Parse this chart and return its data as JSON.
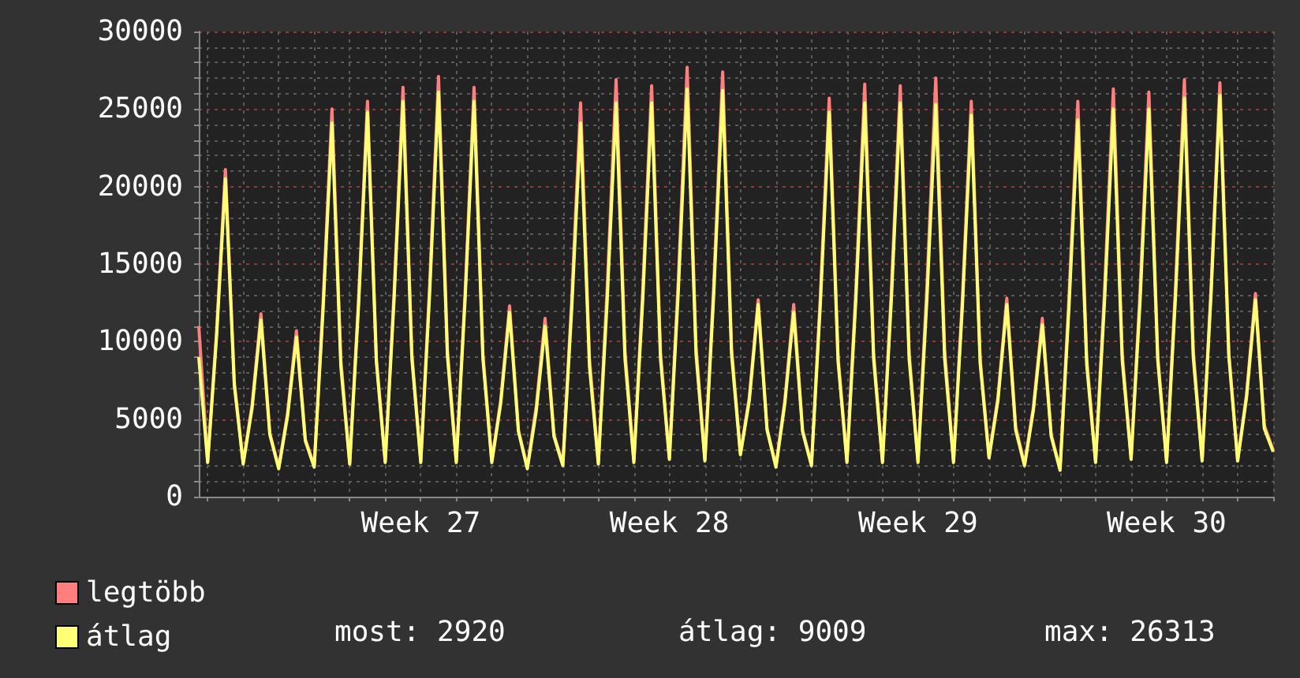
{
  "chart_data": {
    "type": "line",
    "legend": "bottom left",
    "grid": true,
    "marker": "none",
    "line_style": "solid",
    "annotations": [
      "most: 2920",
      "átlag: 9009",
      "max: 26313"
    ],
    "categories": [
      null,
      null,
      null,
      null,
      null,
      null,
      null,
      null,
      null,
      null,
      null,
      null,
      null,
      null,
      null,
      null,
      null,
      null,
      null,
      null,
      null,
      null,
      null,
      null,
      null,
      "Week 27",
      null,
      null,
      null,
      null,
      null,
      null,
      null,
      null,
      null,
      null,
      null,
      null,
      null,
      null,
      null,
      null,
      null,
      null,
      null,
      null,
      null,
      null,
      null,
      null,
      null,
      null,
      null,
      "Week 28",
      null,
      null,
      null,
      null,
      null,
      null,
      null,
      null,
      null,
      null,
      null,
      null,
      null,
      null,
      null,
      null,
      null,
      null,
      null,
      null,
      null,
      null,
      null,
      null,
      null,
      null,
      null,
      "Week 29",
      null,
      null,
      null,
      null,
      null,
      null,
      null,
      null,
      null,
      null,
      null,
      null,
      null,
      null,
      null,
      null,
      null,
      null,
      null,
      null,
      null,
      null,
      null,
      null,
      null,
      null,
      null,
      "Week 30",
      null,
      null,
      null,
      null,
      null,
      null,
      null,
      null,
      null,
      null,
      null,
      null
    ],
    "ylim": [
      0,
      30000
    ],
    "yticks": [
      0,
      {
        "value": 1000,
        "label": null
      },
      {
        "value": 2000,
        "label": null
      },
      {
        "value": 3000,
        "label": null
      },
      {
        "value": 4000,
        "label": null
      },
      5000,
      {
        "value": 6000,
        "label": null
      },
      {
        "value": 7000,
        "label": null
      },
      {
        "value": 8000,
        "label": null
      },
      {
        "value": 9000,
        "label": null
      },
      10000,
      {
        "value": 11000,
        "label": null
      },
      {
        "value": 12000,
        "label": null
      },
      {
        "value": 13000,
        "label": null
      },
      {
        "value": 14000,
        "label": null
      },
      15000,
      {
        "value": 16000,
        "label": null
      },
      {
        "value": 17000,
        "label": null
      },
      {
        "value": 18000,
        "label": null
      },
      {
        "value": 19000,
        "label": null
      },
      20000,
      {
        "value": 21000,
        "label": null
      },
      {
        "value": 22000,
        "label": null
      },
      {
        "value": 23000,
        "label": null
      },
      {
        "value": 24000,
        "label": null
      },
      25000,
      {
        "value": 26000,
        "label": null
      },
      {
        "value": 27000,
        "label": null
      },
      {
        "value": 28000,
        "label": null
      },
      {
        "value": 29000,
        "label": null
      },
      30000
    ],
    "series": [
      {
        "name": "legtöbb",
        "color": "#ff7f7f",
        "values": [
          11000,
          2300,
          10600,
          21100,
          7400,
          2200,
          5900,
          11800,
          4100,
          1900,
          5400,
          10700,
          3700,
          2000,
          12500,
          25000,
          8800,
          2200,
          12800,
          25500,
          8900,
          2300,
          13200,
          26400,
          9200,
          2300,
          13600,
          27100,
          9500,
          2300,
          13200,
          26400,
          9200,
          2300,
          6200,
          12300,
          4300,
          1900,
          5800,
          11500,
          4000,
          2100,
          12700,
          25400,
          8900,
          2200,
          13500,
          26900,
          9400,
          2300,
          13300,
          26500,
          9300,
          2500,
          13900,
          27700,
          9700,
          2400,
          13700,
          27400,
          9600,
          2800,
          6400,
          12700,
          4400,
          2000,
          6200,
          12400,
          4300,
          2100,
          12900,
          25700,
          9000,
          2300,
          13300,
          26600,
          9300,
          2300,
          13300,
          26500,
          9300,
          2300,
          13500,
          27000,
          9500,
          2300,
          12800,
          25500,
          8900,
          2600,
          6400,
          12800,
          4500,
          2100,
          5800,
          11500,
          4000,
          1800,
          12800,
          25500,
          8900,
          2300,
          13200,
          26300,
          9200,
          2500,
          13100,
          26100,
          9100,
          2300,
          13500,
          26900,
          9400,
          2400,
          13400,
          26700,
          9300,
          2400,
          6600,
          13100,
          4600,
          3000
        ]
      },
      {
        "name": "átlag",
        "color": "#ffff77",
        "values": [
          9000,
          2200,
          10300,
          20500,
          7200,
          2100,
          5700,
          11400,
          4000,
          1800,
          5200,
          10300,
          3600,
          1900,
          12100,
          24100,
          8400,
          2100,
          12400,
          24800,
          8700,
          2200,
          12800,
          25500,
          8900,
          2200,
          13100,
          26100,
          9100,
          2200,
          12800,
          25500,
          8900,
          2200,
          6000,
          11900,
          4200,
          1800,
          5500,
          11000,
          3900,
          2000,
          12100,
          24100,
          8400,
          2100,
          12700,
          25400,
          8900,
          2200,
          12700,
          25400,
          8900,
          2400,
          13200,
          26300,
          9200,
          2300,
          13100,
          26200,
          9200,
          2700,
          6200,
          12400,
          4300,
          1900,
          6000,
          11900,
          4200,
          2000,
          12400,
          24800,
          8700,
          2200,
          12700,
          25400,
          8900,
          2200,
          12700,
          25400,
          8900,
          2200,
          12700,
          25300,
          8900,
          2200,
          12300,
          24600,
          8600,
          2500,
          6200,
          12400,
          4300,
          2000,
          5600,
          11100,
          3900,
          1700,
          12200,
          24300,
          8500,
          2200,
          12500,
          25000,
          8800,
          2400,
          12500,
          25000,
          8800,
          2200,
          12900,
          25700,
          9000,
          2300,
          13000,
          25900,
          9100,
          2300,
          6400,
          12700,
          4400,
          2900
        ]
      }
    ]
  }
}
